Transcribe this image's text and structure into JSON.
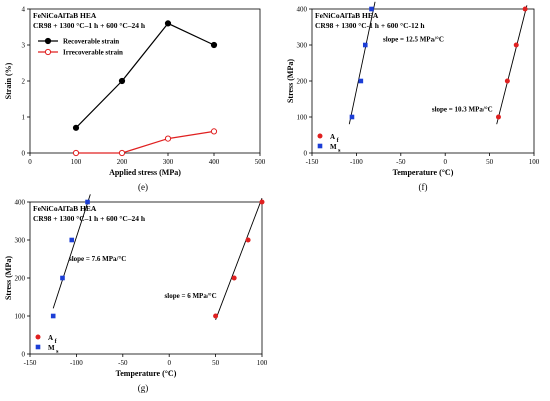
{
  "chart_data": [
    {
      "panel": "(e)",
      "type": "line",
      "title": "FeNiCoAlTaB HEA",
      "subtitle": "CR98 + 1300 °C–1 h + 600 °C–24 h",
      "xlabel": "Applied stress (MPa)",
      "ylabel": "Strain (%)",
      "xlim": [
        0,
        500
      ],
      "ylim": [
        0,
        4
      ],
      "xticks": [
        0,
        100,
        200,
        300,
        400,
        500
      ],
      "yticks": [
        0,
        1,
        2,
        3,
        4
      ],
      "legend_position": "top-left",
      "series": [
        {
          "name": "Recoverable strain",
          "color": "#000000",
          "marker": "filled-circle",
          "x": [
            100,
            200,
            300,
            400
          ],
          "y": [
            0.7,
            2.0,
            3.6,
            3.0
          ]
        },
        {
          "name": "Irrecoverable strain",
          "color": "#e02020",
          "marker": "open-circle",
          "x": [
            100,
            200,
            300,
            400
          ],
          "y": [
            0.0,
            0.0,
            0.4,
            0.6
          ]
        }
      ]
    },
    {
      "panel": "(f)",
      "type": "scatter",
      "title": "FeNiCoAlTaB HEA",
      "subtitle": "CR98 + 1300 °C-1 h + 600 °C-12 h",
      "xlabel": "Temperature (°C)",
      "ylabel": "Stress (MPa)",
      "xlim": [
        -150,
        100
      ],
      "ylim": [
        0,
        400
      ],
      "xticks": [
        -150,
        -100,
        -50,
        0,
        50,
        100
      ],
      "yticks": [
        0,
        100,
        200,
        300,
        400
      ],
      "legend_position": "bottom-left",
      "annotations": [
        {
          "text": "slope = 12.5 MPa/°C",
          "at": [
            -70,
            310
          ]
        },
        {
          "text": "slope = 10.3 MPa/°C",
          "at": [
            -15,
            115
          ]
        }
      ],
      "series": [
        {
          "name": "Af",
          "color": "#e02020",
          "marker": "circle",
          "x": [
            60,
            70,
            80,
            90
          ],
          "y": [
            100,
            200,
            300,
            400
          ],
          "fit": {
            "x": [
              58,
              92
            ],
            "y": [
              80,
              410
            ]
          }
        },
        {
          "name": "Ms",
          "color": "#1c3ed6",
          "marker": "square",
          "x": [
            -105,
            -95,
            -90,
            -83
          ],
          "y": [
            100,
            200,
            300,
            400
          ],
          "fit": {
            "x": [
              -108,
              -79
            ],
            "y": [
              80,
              420
            ]
          }
        }
      ]
    },
    {
      "panel": "(g)",
      "type": "scatter",
      "title": "FeNiCoAlTaB HEA",
      "subtitle": "CR98 + 1300 °C–1 h + 600 °C–24 h",
      "xlabel": "Temperature (°C)",
      "ylabel": "Stress (MPa)",
      "xlim": [
        -150,
        100
      ],
      "ylim": [
        0,
        400
      ],
      "xticks": [
        -150,
        -100,
        -50,
        0,
        50,
        100
      ],
      "yticks": [
        0,
        100,
        200,
        300,
        400
      ],
      "legend_position": "bottom-left",
      "annotations": [
        {
          "text": "slope = 7.6 MPa/°C",
          "at": [
            -108,
            245
          ]
        },
        {
          "text": "slope = 6 MPa/°C",
          "at": [
            -5,
            148
          ]
        }
      ],
      "series": [
        {
          "name": "Af",
          "color": "#e02020",
          "marker": "circle",
          "x": [
            50,
            70,
            85,
            100
          ],
          "y": [
            100,
            200,
            300,
            400
          ],
          "fit": {
            "x": [
              50,
              100
            ],
            "y": [
              90,
              410
            ]
          }
        },
        {
          "name": "Ms",
          "color": "#1c3ed6",
          "marker": "square",
          "x": [
            -125,
            -115,
            -105,
            -88
          ],
          "y": [
            100,
            200,
            300,
            400
          ],
          "fit": {
            "x": [
              -125,
              -85
            ],
            "y": [
              120,
              420
            ]
          }
        }
      ]
    }
  ],
  "legend_labels": {
    "af": {
      "base": "A",
      "sub": "f"
    },
    "ms": {
      "base": "M",
      "sub": "s"
    }
  }
}
